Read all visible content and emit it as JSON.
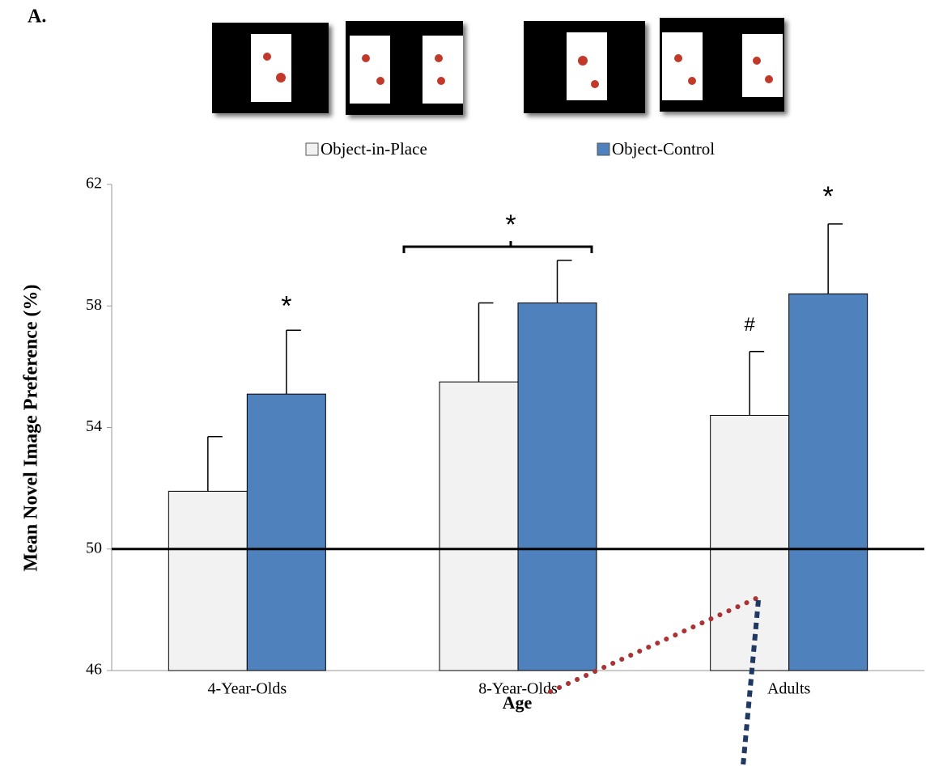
{
  "chart_data": {
    "type": "bar",
    "panel_label": "A.",
    "y_label": "Mean Novel Image Preference (%)",
    "x_label": "Age",
    "categories": [
      "4-Year-Olds",
      "8-Year-Olds",
      "Adults"
    ],
    "series": [
      {
        "name": "Object-in-Place",
        "color": "#f2f2f2",
        "values": [
          51.9,
          55.5,
          54.4
        ],
        "errors": [
          1.8,
          2.6,
          2.1
        ]
      },
      {
        "name": "Object-Control",
        "color": "#4f81bd",
        "values": [
          55.1,
          58.1,
          58.4
        ],
        "errors": [
          2.1,
          1.4,
          2.3
        ]
      }
    ],
    "ylim": [
      46,
      62
    ],
    "yticks": [
      46,
      50,
      54,
      58,
      62
    ],
    "reference_line": 50,
    "annotations": [
      {
        "text": "*"
      },
      {
        "text": "*"
      },
      {
        "text": "#"
      },
      {
        "text": "*"
      }
    ]
  }
}
